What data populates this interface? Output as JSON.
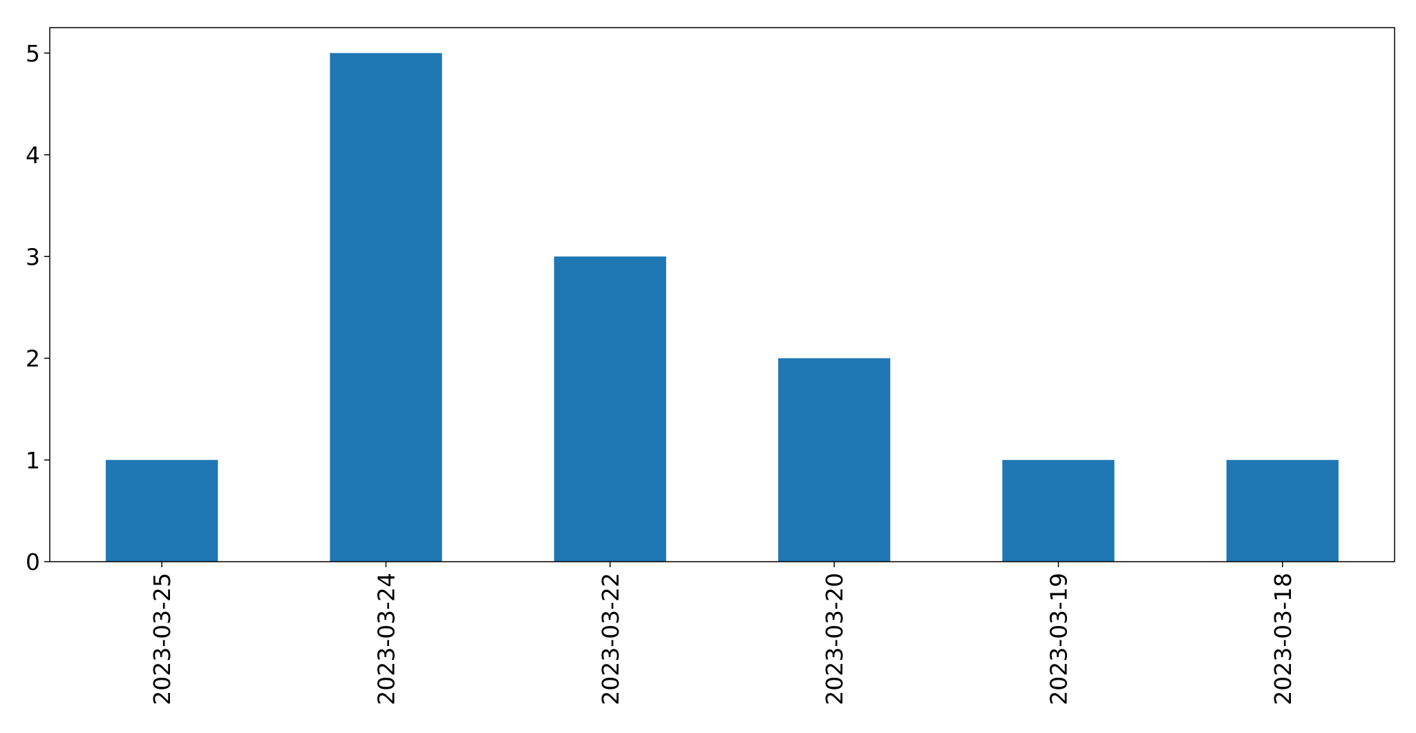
{
  "chart_data": {
    "type": "bar",
    "categories": [
      "2023-03-25",
      "2023-03-24",
      "2023-03-22",
      "2023-03-20",
      "2023-03-19",
      "2023-03-18"
    ],
    "values": [
      1,
      5,
      3,
      2,
      1,
      1
    ],
    "title": "",
    "xlabel": "",
    "ylabel": "",
    "ylim": [
      0,
      5.25
    ],
    "yticks": [
      0,
      1,
      2,
      3,
      4,
      5
    ],
    "grid": false,
    "legend": "none",
    "bar_color": "#1f77b4"
  }
}
